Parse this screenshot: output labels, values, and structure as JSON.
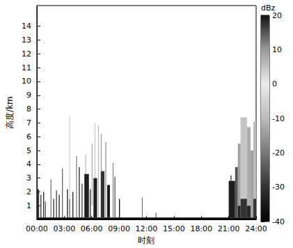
{
  "chart_data": {
    "type": "heatmap",
    "x_label": "时刻",
    "y_label": "高度/km",
    "xlim": [
      0,
      24
    ],
    "xticks": [
      {
        "value": 0,
        "label": "00:00"
      },
      {
        "value": 3,
        "label": "03:00"
      },
      {
        "value": 6,
        "label": "06:00"
      },
      {
        "value": 9,
        "label": "09:00"
      },
      {
        "value": 12,
        "label": "12:00"
      },
      {
        "value": 15,
        "label": "15:00"
      },
      {
        "value": 18,
        "label": "18:00"
      },
      {
        "value": 21,
        "label": "21:00"
      },
      {
        "value": 24,
        "label": "24:00"
      }
    ],
    "ylim": [
      0,
      15.5
    ],
    "yticks": [
      1,
      2,
      3,
      4,
      5,
      6,
      7,
      8,
      9,
      10,
      11,
      12,
      13,
      14
    ],
    "grid": false,
    "colorbar": {
      "label": "dBz",
      "range": [
        -40,
        20
      ],
      "ticks": [
        -40,
        -30,
        -20,
        -10,
        0,
        10,
        20
      ]
    },
    "cells": [
      [
        0,
        24,
        0,
        0.15,
        -38
      ],
      [
        0.1,
        0.25,
        0.15,
        2.2,
        -32
      ],
      [
        0.4,
        0.5,
        0.15,
        1.8,
        -30
      ],
      [
        0.7,
        0.8,
        0.15,
        2.0,
        -34
      ],
      [
        0.9,
        1.0,
        0.15,
        1.3,
        -25
      ],
      [
        1.5,
        1.6,
        0.15,
        2.9,
        -20
      ],
      [
        1.8,
        1.9,
        0.15,
        1.5,
        -33
      ],
      [
        2.1,
        2.2,
        0.15,
        2.1,
        -28
      ],
      [
        2.4,
        2.5,
        0.15,
        1.8,
        -34
      ],
      [
        2.75,
        2.85,
        0.15,
        3.7,
        -22
      ],
      [
        3.3,
        3.4,
        0.15,
        2.2,
        -33
      ],
      [
        3.55,
        3.62,
        1.5,
        7.5,
        -8
      ],
      [
        3.55,
        3.62,
        0.15,
        1.5,
        -30
      ],
      [
        3.9,
        4.0,
        0.15,
        2.0,
        -34
      ],
      [
        4.3,
        4.4,
        0.15,
        4.6,
        -18
      ],
      [
        4.6,
        4.7,
        0.15,
        3.8,
        -33
      ],
      [
        4.9,
        5.0,
        0.15,
        2.6,
        -30
      ],
      [
        5.2,
        5.7,
        0.15,
        3.3,
        -34
      ],
      [
        5.3,
        5.4,
        3.3,
        4.7,
        -10
      ],
      [
        5.8,
        5.9,
        0.15,
        2.2,
        -32
      ],
      [
        6.0,
        6.1,
        1.0,
        5.5,
        -12
      ],
      [
        6.2,
        6.6,
        0.15,
        3.0,
        -34
      ],
      [
        6.3,
        6.42,
        3.0,
        7.0,
        -6
      ],
      [
        6.7,
        6.8,
        0.15,
        6.8,
        -10
      ],
      [
        7.0,
        7.4,
        0.15,
        3.5,
        -30
      ],
      [
        7.0,
        7.1,
        3.5,
        6.2,
        -14
      ],
      [
        7.5,
        7.6,
        0.15,
        5.6,
        -16
      ],
      [
        7.7,
        8.0,
        0.15,
        2.5,
        -35
      ],
      [
        8.3,
        8.4,
        0.15,
        4.1,
        -18
      ],
      [
        8.5,
        8.6,
        0.15,
        3.1,
        -25
      ],
      [
        9.0,
        9.1,
        0.15,
        1.5,
        -36
      ],
      [
        11.5,
        11.55,
        0.15,
        1.6,
        -25
      ],
      [
        13.0,
        13.05,
        0.15,
        0.5,
        -30
      ],
      [
        21.0,
        21.7,
        0.15,
        2.8,
        -34
      ],
      [
        21.2,
        21.3,
        2.8,
        3.2,
        -30
      ],
      [
        21.7,
        22.0,
        0.15,
        3.8,
        -25
      ],
      [
        22.0,
        22.3,
        1.0,
        5.5,
        -14
      ],
      [
        22.0,
        22.3,
        0.15,
        1.0,
        -33
      ],
      [
        22.3,
        23.0,
        1.5,
        7.4,
        -8
      ],
      [
        22.3,
        23.0,
        0.15,
        1.5,
        -30
      ],
      [
        23.0,
        23.4,
        1.0,
        6.7,
        -12
      ],
      [
        23.0,
        23.4,
        0.15,
        1.0,
        -32
      ],
      [
        23.4,
        23.7,
        0.15,
        5.0,
        -14
      ],
      [
        23.7,
        24.0,
        1.5,
        7.1,
        -10
      ],
      [
        23.7,
        24.0,
        0.15,
        1.5,
        -30
      ]
    ]
  }
}
